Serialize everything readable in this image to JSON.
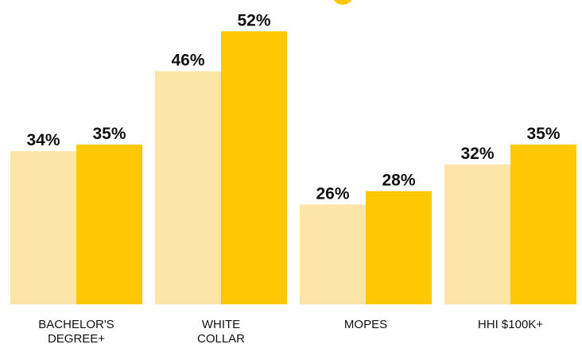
{
  "chart_data": {
    "type": "bar",
    "categories": [
      "BACHELOR'S\nDEGREE+",
      "WHITE\nCOLLAR",
      "MOPES",
      "HHI $100K+"
    ],
    "series": [
      {
        "color": "#fce5a6",
        "values": [
          34,
          46,
          26,
          32
        ],
        "value_labels": [
          "34%",
          "46%",
          "26%",
          "32%"
        ]
      },
      {
        "color": "#ffc802",
        "values": [
          35,
          52,
          28,
          35
        ],
        "value_labels": [
          "35%",
          "52%",
          "28%",
          "35%"
        ]
      }
    ],
    "ylim": [
      11,
      56.7
    ]
  }
}
